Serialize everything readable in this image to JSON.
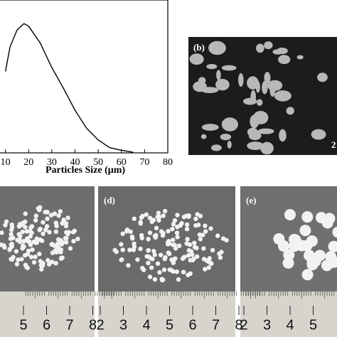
{
  "chart_data": {
    "type": "line",
    "x_label": "Particles Size (μm)",
    "x": [
      10,
      12,
      15,
      18,
      20,
      25,
      30,
      35,
      40,
      45,
      50,
      55,
      60,
      65
    ],
    "values": [
      63,
      82,
      95,
      100,
      98,
      85,
      66,
      50,
      33,
      19,
      10,
      4,
      2,
      0.5
    ],
    "color": "#000000",
    "xlim": [
      0,
      80
    ],
    "xticks": [
      10,
      20,
      30,
      40,
      50,
      60,
      70,
      80
    ],
    "ylim": [
      0,
      110
    ]
  },
  "panels": {
    "b": {
      "label": "(b)",
      "corner_text": "2"
    },
    "c": {
      "ruler": [
        5,
        6,
        7,
        8
      ]
    },
    "d": {
      "label": "(d)",
      "ruler": [
        2,
        3,
        4,
        5,
        6,
        7,
        8
      ]
    },
    "e": {
      "label": "(e)",
      "ruler": [
        2,
        3,
        4,
        5
      ]
    }
  }
}
